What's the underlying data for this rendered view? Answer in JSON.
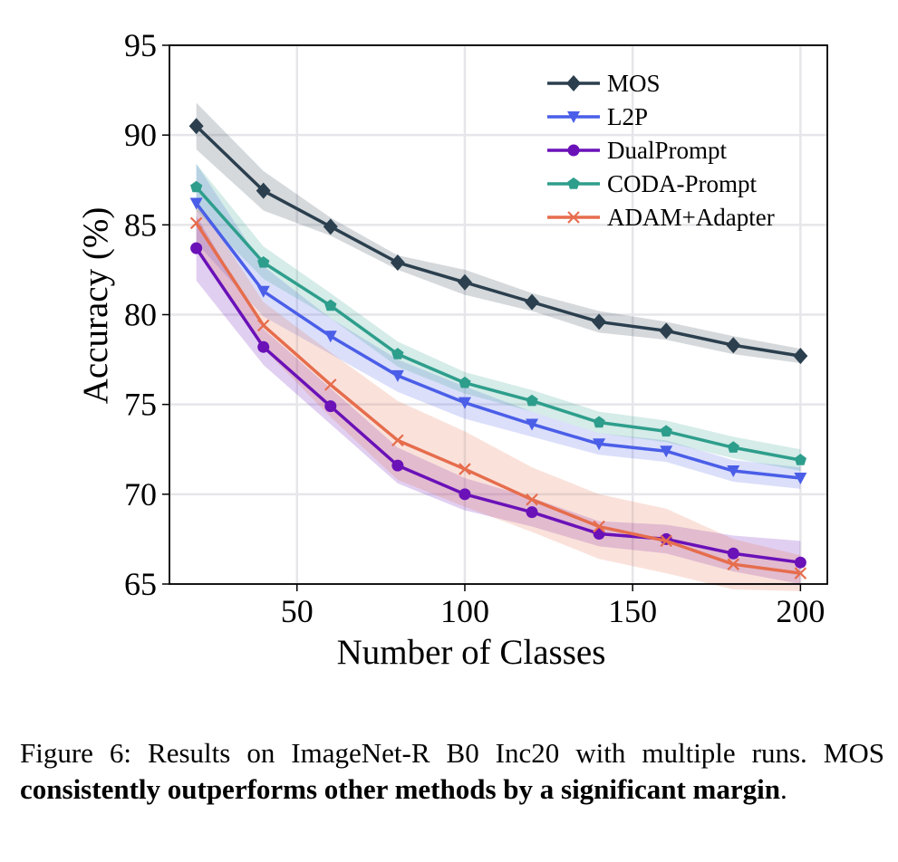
{
  "chart_data": {
    "type": "line",
    "xlabel": "Number of Classes",
    "ylabel": "Accuracy (%)",
    "xlim": [
      12,
      208
    ],
    "ylim": [
      65,
      95
    ],
    "xticks": [
      50,
      100,
      150,
      200
    ],
    "yticks": [
      65,
      70,
      75,
      80,
      85,
      90,
      95
    ],
    "grid": true,
    "legend_position": "top-right",
    "x": [
      20,
      40,
      60,
      80,
      100,
      120,
      140,
      160,
      180,
      200
    ],
    "series": [
      {
        "name": "MOS",
        "color": "#2b3f4e",
        "marker": "diamond",
        "values": [
          90.5,
          86.9,
          84.9,
          82.9,
          81.8,
          80.7,
          79.6,
          79.1,
          78.3,
          77.7
        ],
        "band": [
          1.3,
          1.1,
          0.5,
          0.4,
          0.7,
          0.5,
          0.6,
          0.5,
          0.5,
          0.4
        ]
      },
      {
        "name": "L2P",
        "color": "#4a5ee8",
        "marker": "triangle-down",
        "values": [
          86.2,
          81.3,
          78.8,
          76.6,
          75.1,
          73.9,
          72.8,
          72.4,
          71.3,
          70.9
        ],
        "band": [
          2.2,
          1.4,
          1.0,
          0.9,
          0.9,
          0.7,
          0.6,
          0.6,
          0.6,
          0.6
        ]
      },
      {
        "name": "DualPrompt",
        "color": "#6a11b8",
        "marker": "circle",
        "values": [
          83.7,
          78.2,
          74.9,
          71.6,
          70.0,
          69.0,
          67.8,
          67.5,
          66.7,
          66.2
        ],
        "band": [
          1.8,
          1.0,
          1.0,
          1.0,
          0.9,
          0.8,
          0.7,
          0.8,
          1.0,
          1.2
        ]
      },
      {
        "name": "CODA-Prompt",
        "color": "#2e9e8c",
        "marker": "pentagon",
        "values": [
          87.1,
          82.9,
          80.5,
          77.8,
          76.2,
          75.2,
          74.0,
          73.5,
          72.6,
          71.9
        ],
        "band": [
          1.3,
          0.9,
          0.7,
          0.7,
          0.6,
          0.6,
          0.6,
          0.6,
          0.6,
          0.6
        ]
      },
      {
        "name": "ADAM+Adapter",
        "color": "#e66d4d",
        "marker": "x",
        "values": [
          85.1,
          79.4,
          76.1,
          73.0,
          71.4,
          69.7,
          68.2,
          67.4,
          66.1,
          65.6
        ],
        "band": [
          1.3,
          1.3,
          1.8,
          2.2,
          2.1,
          1.8,
          1.8,
          1.8,
          1.4,
          1.0
        ]
      }
    ]
  },
  "caption": {
    "label": "Figure 6:",
    "text": " Results on ImageNet-R B0 Inc20 with multiple runs. MOS ",
    "bold": "consistently outperforms other methods by a significant margin",
    "end": "."
  }
}
